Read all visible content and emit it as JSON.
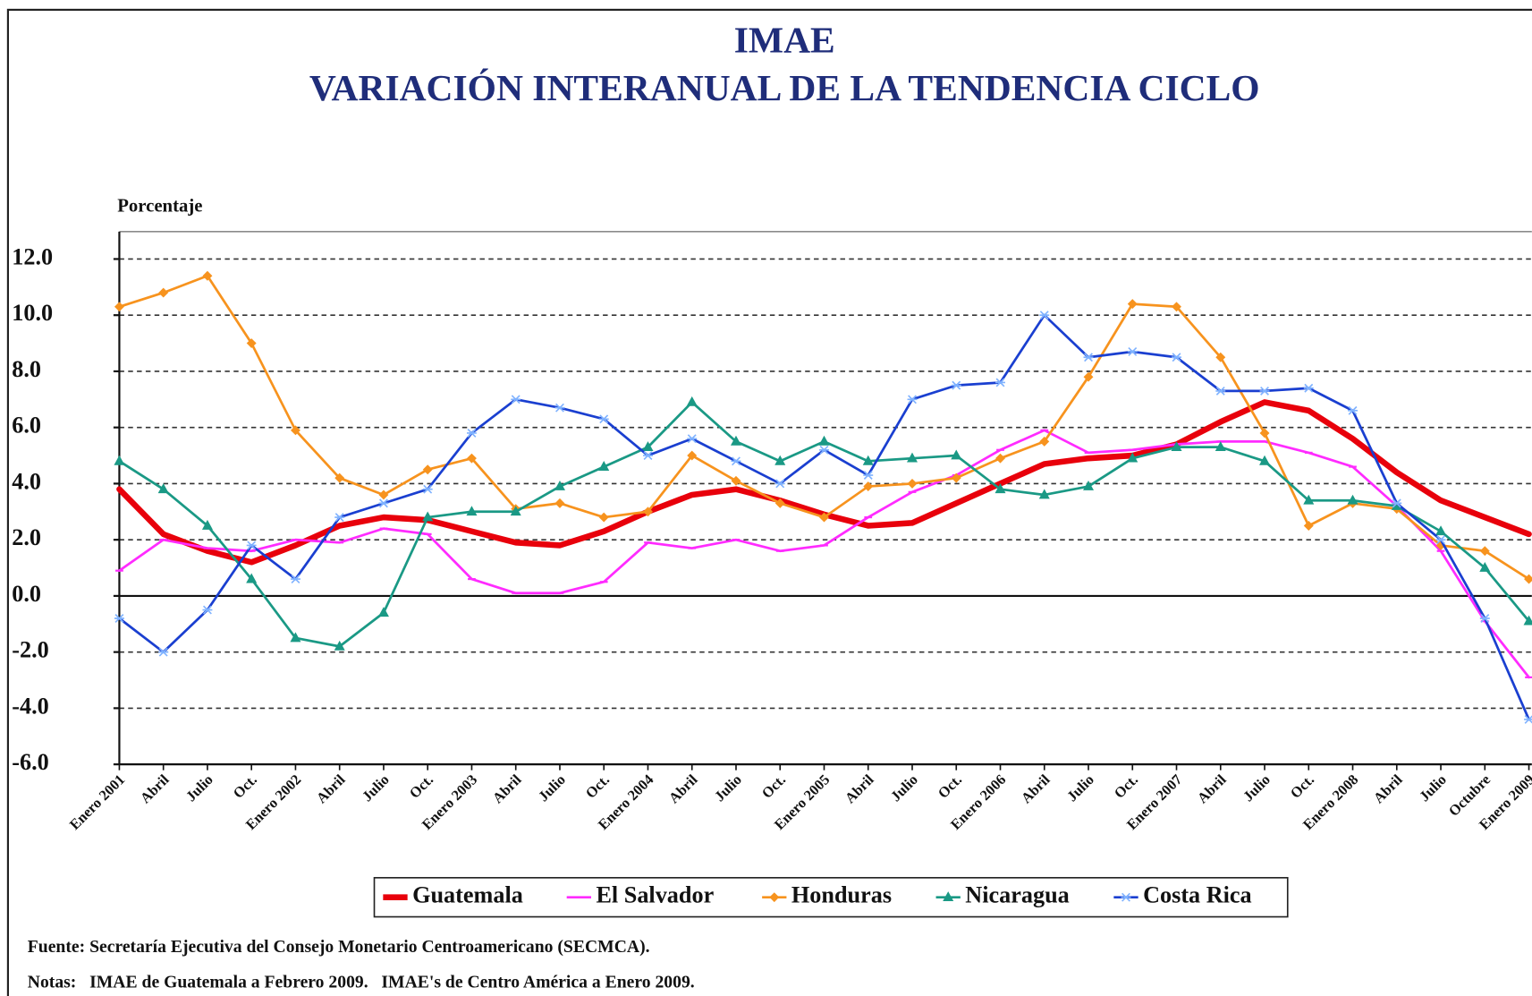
{
  "chart_data": {
    "type": "line",
    "title": "IMAE",
    "subtitle": "VARIACIÓN INTERANUAL DE LA TENDENCIA CICLO",
    "y_label": "Porcentaje",
    "categories": [
      "Enero 2001",
      "Abril",
      "Julio",
      "Oct.",
      "Enero 2002",
      "Abril",
      "Julio",
      "Oct.",
      "Enero 2003",
      "Abril",
      "Julio",
      "Oct.",
      "Enero 2004",
      "Abril",
      "Julio",
      "Oct.",
      "Enero 2005",
      "Abril",
      "Julio",
      "Oct.",
      "Enero 2006",
      "Abril",
      "Julio",
      "Oct.",
      "Enero 2007",
      "Abril",
      "Julio",
      "Oct.",
      "Enero 2008",
      "Abril",
      "Julio",
      "Octubre",
      "Enero 2009"
    ],
    "series": [
      {
        "name": "Guatemala",
        "color": "#e8000b",
        "marker": "none",
        "values": [
          3.8,
          2.2,
          1.6,
          1.2,
          1.8,
          2.5,
          2.8,
          2.7,
          2.3,
          1.9,
          1.8,
          2.3,
          3.0,
          3.6,
          3.8,
          3.4,
          2.9,
          2.5,
          2.6,
          3.3,
          4.0,
          4.7,
          4.9,
          5.0,
          5.4,
          6.2,
          6.9,
          6.6,
          5.6,
          4.4,
          3.4,
          2.8,
          2.2
        ]
      },
      {
        "name": "El Salvador",
        "color": "#ff2bff",
        "marker": "dash",
        "values": [
          0.9,
          2.0,
          1.7,
          1.6,
          2.0,
          1.9,
          2.4,
          2.2,
          0.6,
          0.1,
          0.1,
          0.5,
          1.9,
          1.7,
          2.0,
          1.6,
          1.8,
          2.8,
          3.7,
          4.3,
          5.2,
          5.9,
          5.1,
          5.2,
          5.4,
          5.5,
          5.5,
          5.1,
          4.6,
          3.2,
          1.6,
          -0.9,
          -2.9
        ]
      },
      {
        "name": "Honduras",
        "color": "#f7931e",
        "marker": "diamond",
        "values": [
          10.3,
          10.8,
          11.4,
          9.0,
          5.9,
          4.2,
          3.6,
          4.5,
          4.9,
          3.1,
          3.3,
          2.8,
          3.0,
          5.0,
          4.1,
          3.3,
          2.8,
          3.9,
          4.0,
          4.2,
          4.9,
          5.5,
          7.8,
          10.4,
          10.3,
          8.5,
          5.8,
          2.5,
          3.3,
          3.1,
          1.8,
          1.6,
          0.6
        ]
      },
      {
        "name": "Nicaragua",
        "color": "#1a9985",
        "marker": "triangle",
        "values": [
          4.8,
          3.8,
          2.5,
          0.6,
          -1.5,
          -1.8,
          -0.6,
          2.8,
          3.0,
          3.0,
          3.9,
          4.6,
          5.3,
          6.9,
          5.5,
          4.8,
          5.5,
          4.8,
          4.9,
          5.0,
          3.8,
          3.6,
          3.9,
          4.9,
          5.3,
          5.3,
          4.8,
          3.4,
          3.4,
          3.2,
          2.3,
          1.0,
          -0.9
        ]
      },
      {
        "name": "Costa Rica",
        "color": "#1a3fd0",
        "marker": "star",
        "values": [
          -0.8,
          -2.0,
          -0.5,
          1.8,
          0.6,
          2.8,
          3.3,
          3.8,
          5.8,
          7.0,
          6.7,
          6.3,
          5.0,
          5.6,
          4.8,
          4.0,
          5.2,
          4.3,
          7.0,
          7.5,
          7.6,
          10.0,
          8.5,
          8.7,
          8.5,
          7.3,
          7.3,
          7.4,
          6.6,
          3.3,
          2.0,
          -0.8,
          -4.4
        ]
      }
    ],
    "ylim": [
      -6,
      12
    ],
    "yticks": [
      {
        "value": 12,
        "label": "12.0"
      },
      {
        "value": 10,
        "label": "10.0"
      },
      {
        "value": 8,
        "label": "8.0"
      },
      {
        "value": 6,
        "label": "6.0"
      },
      {
        "value": 4,
        "label": "4.0"
      },
      {
        "value": 2,
        "label": "2.0"
      },
      {
        "value": 0,
        "label": "0.0"
      },
      {
        "value": -2,
        "label": "-2.0"
      },
      {
        "value": -4,
        "label": "-4.0"
      },
      {
        "value": -6,
        "label": "-6.0"
      }
    ],
    "grid": true,
    "legend": "bottom",
    "source": "Fuente: Secretaría Ejecutiva del Consejo Monetario Centroamericano (SECMCA).",
    "notes": "Notas:   IMAE de Guatemala a Febrero 2009.   IMAE's de Centro América a Enero 2009."
  }
}
